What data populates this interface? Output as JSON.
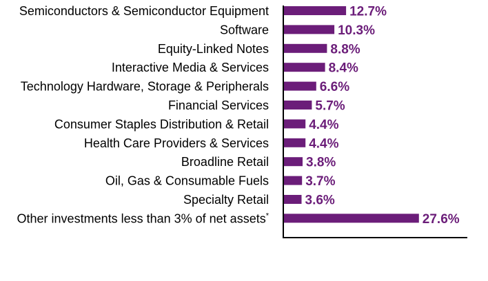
{
  "chart_data": {
    "type": "bar",
    "orientation": "horizontal",
    "categories": [
      "Semiconductors & Semiconductor Equipment",
      "Software",
      "Equity-Linked Notes",
      "Interactive Media & Services",
      "Technology Hardware, Storage & Peripherals",
      "Financial Services",
      "Consumer Staples Distribution & Retail",
      "Health Care Providers & Services",
      "Broadline Retail",
      "Oil, Gas & Consumable Fuels",
      "Specialty Retail",
      "Other investments less than 3% of net assets"
    ],
    "category_superscripts": [
      "",
      "",
      "",
      "",
      "",
      "",
      "",
      "",
      "",
      "",
      "",
      "*"
    ],
    "values": [
      12.7,
      10.3,
      8.8,
      8.4,
      6.6,
      5.7,
      4.4,
      4.4,
      3.8,
      3.7,
      3.6,
      27.6
    ],
    "value_labels": [
      "12.7%",
      "10.3%",
      "8.8%",
      "8.4%",
      "6.6%",
      "5.7%",
      "4.4%",
      "4.4%",
      "3.8%",
      "3.7%",
      "3.6%",
      "27.6%"
    ],
    "xlim": [
      0,
      37.5
    ],
    "grid": false,
    "colors": {
      "bar": "#6b1d79",
      "value_label": "#6b1d79",
      "axis": "#000000"
    }
  }
}
